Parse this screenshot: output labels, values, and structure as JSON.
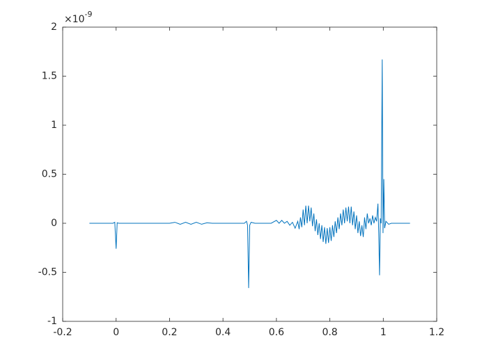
{
  "chart_data": {
    "type": "line",
    "x": [
      -0.1,
      -0.012,
      -0.005,
      0,
      0.004,
      0.01,
      0.2,
      0.22,
      0.24,
      0.26,
      0.28,
      0.3,
      0.32,
      0.34,
      0.36,
      0.48,
      0.488,
      0.492,
      0.496,
      0.5,
      0.505,
      0.52,
      0.58,
      0.6,
      0.61,
      0.62,
      0.63,
      0.64,
      0.65,
      0.66,
      0.67,
      0.68,
      0.685,
      0.69,
      0.695,
      0.7,
      0.705,
      0.71,
      0.715,
      0.72,
      0.725,
      0.73,
      0.735,
      0.74,
      0.745,
      0.75,
      0.755,
      0.76,
      0.765,
      0.77,
      0.775,
      0.78,
      0.785,
      0.79,
      0.795,
      0.8,
      0.805,
      0.81,
      0.815,
      0.82,
      0.825,
      0.83,
      0.835,
      0.84,
      0.845,
      0.85,
      0.855,
      0.86,
      0.865,
      0.87,
      0.875,
      0.88,
      0.885,
      0.89,
      0.895,
      0.9,
      0.905,
      0.91,
      0.915,
      0.92,
      0.925,
      0.93,
      0.935,
      0.94,
      0.945,
      0.95,
      0.955,
      0.96,
      0.965,
      0.97,
      0.975,
      0.98,
      0.983,
      0.986,
      0.989,
      0.992,
      0.996,
      0.999,
      1.002,
      1.005,
      1.01,
      1.02,
      1.03,
      1.1
    ],
    "series": [
      {
        "color": "#0072bd",
        "values": [
          0,
          0,
          0.01,
          -0.26,
          0.005,
          0,
          0,
          0.01,
          -0.01,
          0.01,
          -0.01,
          0.01,
          -0.01,
          0.005,
          0,
          0,
          0.02,
          -0.02,
          -0.66,
          -0.02,
          0.01,
          0,
          0,
          0.03,
          0,
          0.03,
          0,
          0.02,
          -0.02,
          0.01,
          -0.05,
          0.02,
          -0.06,
          0.06,
          -0.04,
          0.14,
          -0.02,
          0.18,
          0,
          0.18,
          0.02,
          0.16,
          -0.03,
          0.1,
          -0.08,
          0.04,
          -0.12,
          0,
          -0.16,
          -0.02,
          -0.19,
          -0.04,
          -0.21,
          -0.05,
          -0.2,
          -0.04,
          -0.18,
          -0.02,
          -0.14,
          0.02,
          -0.1,
          0.06,
          -0.06,
          0.1,
          -0.02,
          0.14,
          0,
          0.16,
          0.02,
          0.17,
          0,
          0.17,
          -0.02,
          0.12,
          -0.06,
          0.08,
          -0.1,
          0.02,
          -0.13,
          -0.02,
          -0.14,
          0.06,
          -0.06,
          0.1,
          0,
          0.05,
          -0.02,
          0.08,
          0,
          0.06,
          0.02,
          0.2,
          -0.1,
          -0.53,
          0.05,
          0,
          1.67,
          -0.1,
          0.45,
          -0.05,
          0.02,
          -0.01,
          0,
          0
        ]
      }
    ],
    "xlim": [
      -0.2,
      1.2
    ],
    "xticks": [
      -0.2,
      0,
      0.2,
      0.4,
      0.6,
      0.8,
      1,
      1.2
    ],
    "ylim": [
      -1,
      2
    ],
    "yticks": [
      -1,
      -0.5,
      0,
      0.5,
      1,
      1.5,
      2
    ],
    "y_exponent": {
      "base": "×10",
      "power": "-9"
    }
  }
}
